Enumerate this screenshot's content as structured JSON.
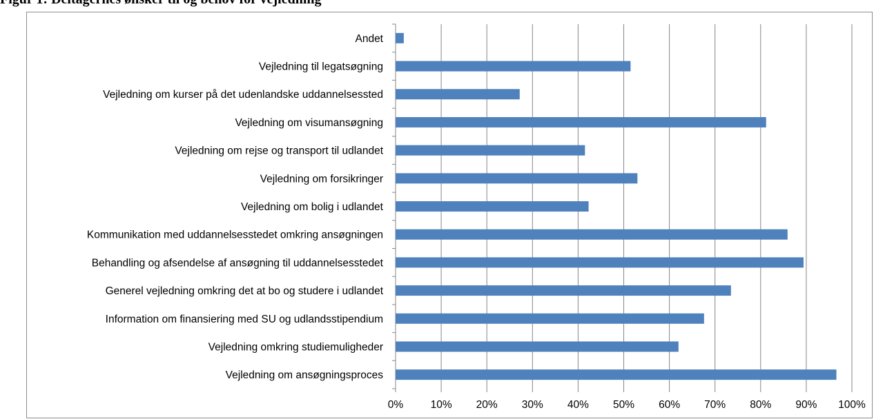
{
  "caption": "Figur 1: Deltagernes ønsker til og behov for vejledning",
  "colors": {
    "bar": "#4f81bd",
    "grid": "#868686",
    "frame": "#8c8c8c"
  },
  "chart_data": {
    "type": "bar",
    "orientation": "horizontal",
    "categories": [
      "Andet",
      "Vejledning til legatsøgning",
      "Vejledning om kurser på det udenlandske uddannelsessted",
      "Vejledning om visumansøgning",
      "Vejledning om rejse og transport til udlandet",
      "Vejledning om forsikringer",
      "Vejledning om bolig i udlandet",
      "Kommunikation med uddannelsesstedet omkring ansøgningen",
      "Behandling og afsendelse af ansøgning til uddannelsesstedet",
      "Generel vejledning omkring det at bo og studere i udlandet",
      "Information om finansiering med SU og udlandsstipendium",
      "Vejledning omkring studiemuligheder",
      "Vejledning om ansøgningsproces"
    ],
    "values": [
      1.8,
      51.5,
      27.2,
      81.2,
      41.5,
      53.0,
      42.3,
      85.9,
      89.4,
      73.5,
      67.6,
      62.0,
      96.6
    ],
    "xlim": [
      0,
      100
    ],
    "xticks": [
      "0%",
      "10%",
      "20%",
      "30%",
      "40%",
      "50%",
      "60%",
      "70%",
      "80%",
      "90%",
      "100%"
    ],
    "grid": true,
    "legend": "none"
  }
}
